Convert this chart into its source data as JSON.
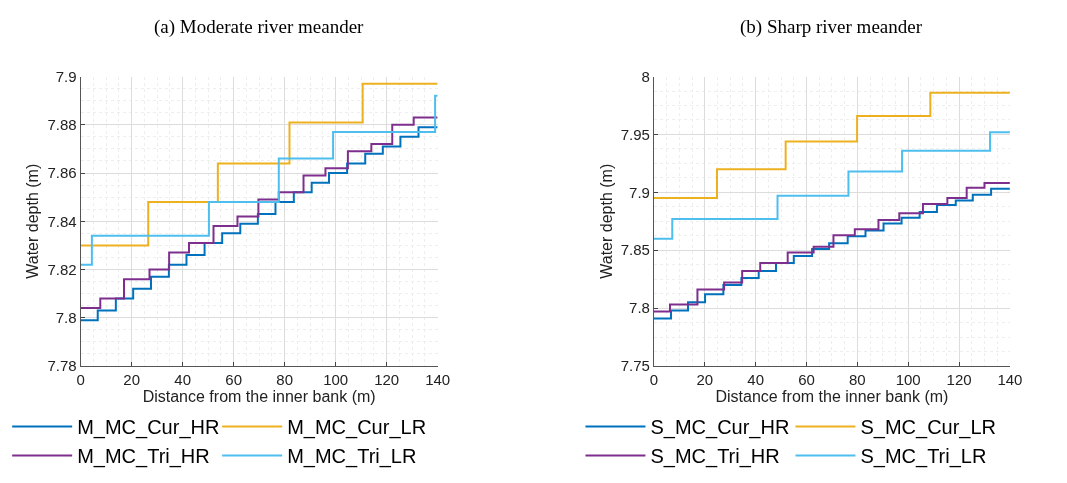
{
  "chart_data": [
    {
      "type": "step",
      "title": "(a) Moderate river meander",
      "xlabel": "Distance from the inner bank (m)",
      "ylabel": "Water depth (m)",
      "xlim": [
        0,
        140
      ],
      "xticks": [
        0,
        20,
        40,
        60,
        80,
        100,
        120,
        140
      ],
      "ylim": [
        7.78,
        7.9
      ],
      "yticks": [
        7.78,
        7.8,
        7.82,
        7.84,
        7.86,
        7.88,
        7.9
      ],
      "grid": true,
      "legend": "bottom",
      "series": [
        {
          "name": "M_MC_Cur_HR",
          "color": "#0072bd",
          "x": [
            0,
            6.7,
            13.8,
            20.6,
            27.6,
            34.6,
            41.5,
            48.6,
            55.5,
            62.6,
            69.5,
            76.4,
            83.6,
            90.6,
            97.4,
            104.5,
            111.6,
            118.5,
            125.4,
            132.5,
            140
          ],
          "values": [
            7.799,
            7.803,
            7.808,
            7.812,
            7.817,
            7.822,
            7.826,
            7.831,
            7.835,
            7.839,
            7.843,
            7.848,
            7.852,
            7.856,
            7.86,
            7.864,
            7.868,
            7.871,
            7.875,
            7.879,
            7.879
          ]
        },
        {
          "name": "M_MC_Cur_LR",
          "color": "#edb120",
          "x": [
            0,
            26.5,
            53.8,
            81.9,
            110.6,
            140
          ],
          "values": [
            7.83,
            7.848,
            7.864,
            7.881,
            7.897,
            7.897
          ]
        },
        {
          "name": "M_MC_Tri_HR",
          "color": "#7e2f8e",
          "x": [
            0,
            7.7,
            17,
            27,
            34.7,
            42.5,
            52.1,
            61.5,
            69.7,
            77.7,
            87.4,
            96,
            104.8,
            114,
            122.2,
            130.6,
            140
          ],
          "values": [
            7.804,
            7.808,
            7.816,
            7.82,
            7.827,
            7.831,
            7.838,
            7.842,
            7.849,
            7.852,
            7.859,
            7.862,
            7.869,
            7.872,
            7.88,
            7.883,
            7.883
          ]
        },
        {
          "name": "M_MC_Tri_LR",
          "color": "#4dbeee",
          "x": [
            0,
            4.4,
            50.3,
            77.7,
            99,
            139,
            140
          ],
          "values": [
            7.822,
            7.834,
            7.848,
            7.866,
            7.877,
            7.892,
            7.892
          ]
        }
      ]
    },
    {
      "type": "step",
      "title": "(b) Sharp river meander",
      "xlabel": "Distance from the inner bank (m)",
      "ylabel": "Water depth (m)",
      "xlim": [
        0,
        140
      ],
      "xticks": [
        0,
        20,
        40,
        60,
        80,
        100,
        120,
        140
      ],
      "ylim": [
        7.75,
        8
      ],
      "yticks": [
        7.75,
        7.8,
        7.85,
        7.9,
        7.95,
        8
      ],
      "grid": true,
      "legend": "bottom",
      "series": [
        {
          "name": "S_MC_Cur_HR",
          "color": "#0072bd",
          "x": [
            0,
            6.7,
            13.4,
            20.1,
            27.3,
            34.4,
            41.2,
            48,
            55,
            62.2,
            68.9,
            76.2,
            83.2,
            90.3,
            97.4,
            104.5,
            111.3,
            118.7,
            125.4,
            132.6,
            140
          ],
          "values": [
            7.791,
            7.798,
            7.805,
            7.812,
            7.82,
            7.826,
            7.832,
            7.839,
            7.845,
            7.851,
            7.856,
            7.862,
            7.867,
            7.873,
            7.878,
            7.883,
            7.889,
            7.893,
            7.898,
            7.903,
            7.903
          ]
        },
        {
          "name": "S_MC_Cur_LR",
          "color": "#edb120",
          "x": [
            0,
            24.8,
            51.8,
            79.9,
            108.7,
            140
          ],
          "values": [
            7.895,
            7.92,
            7.944,
            7.966,
            7.986,
            7.986
          ]
        },
        {
          "name": "S_MC_Tri_HR",
          "color": "#7e2f8e",
          "x": [
            0,
            6.3,
            17.1,
            27.6,
            34.7,
            41.8,
            52.6,
            62.8,
            70.6,
            79,
            88.3,
            96.5,
            105.8,
            115.4,
            123,
            130,
            140
          ],
          "values": [
            7.797,
            7.803,
            7.816,
            7.822,
            7.832,
            7.839,
            7.848,
            7.853,
            7.863,
            7.868,
            7.876,
            7.882,
            7.89,
            7.895,
            7.904,
            7.908,
            7.908
          ]
        },
        {
          "name": "S_MC_Tri_LR",
          "color": "#4dbeee",
          "x": [
            0,
            7.2,
            48.6,
            76.5,
            97.6,
            132.2,
            140
          ],
          "values": [
            7.86,
            7.877,
            7.897,
            7.918,
            7.936,
            7.952,
            7.952
          ]
        }
      ]
    }
  ]
}
